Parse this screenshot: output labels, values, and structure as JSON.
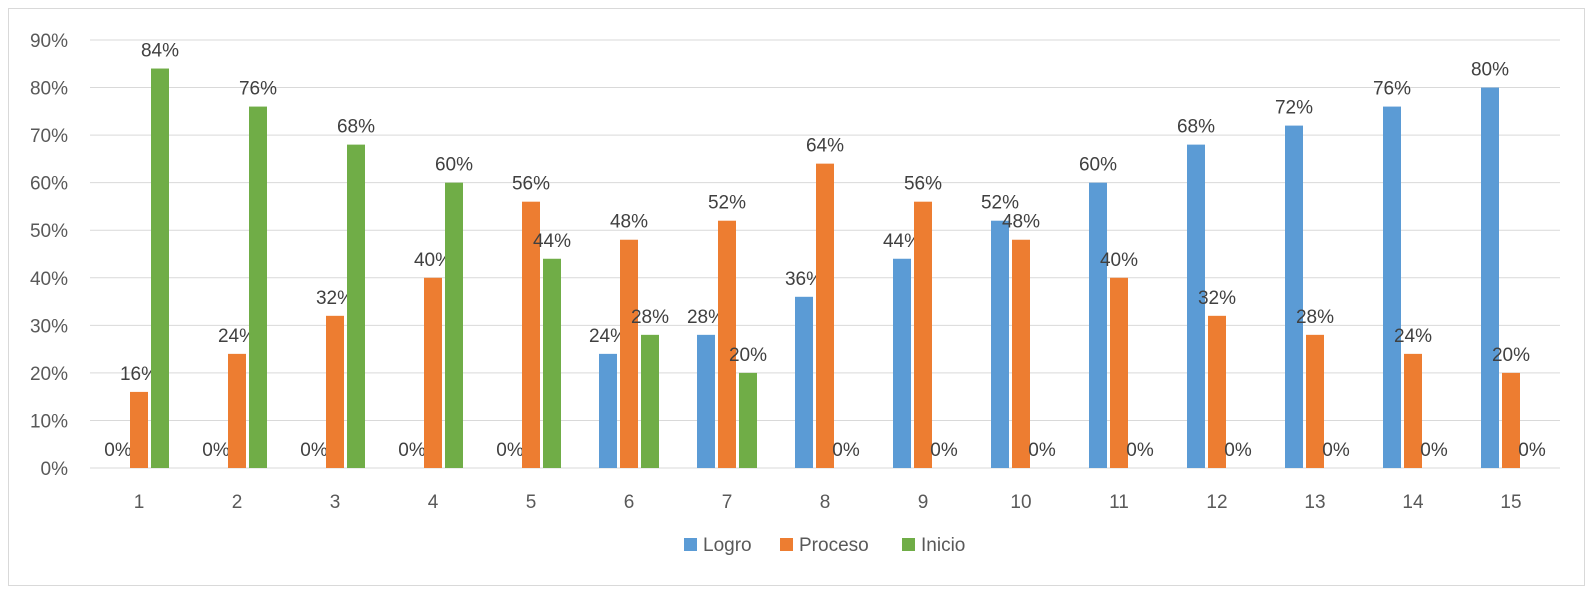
{
  "chart_data": {
    "type": "bar",
    "categories": [
      "1",
      "2",
      "3",
      "4",
      "5",
      "6",
      "7",
      "8",
      "9",
      "10",
      "11",
      "12",
      "13",
      "14",
      "15"
    ],
    "series": [
      {
        "name": "Logro",
        "color": "#5b9bd5",
        "values": [
          0,
          0,
          0,
          0,
          0,
          24,
          28,
          36,
          44,
          52,
          60,
          68,
          72,
          76,
          80
        ]
      },
      {
        "name": "Proceso",
        "color": "#ed7d31",
        "values": [
          16,
          24,
          32,
          40,
          56,
          48,
          52,
          64,
          56,
          48,
          40,
          32,
          28,
          24,
          20
        ]
      },
      {
        "name": "Inicio",
        "color": "#70ad47",
        "values": [
          84,
          76,
          68,
          60,
          44,
          28,
          20,
          0,
          0,
          0,
          0,
          0,
          0,
          0,
          0
        ]
      }
    ],
    "yticks": [
      "0%",
      "10%",
      "20%",
      "30%",
      "40%",
      "50%",
      "60%",
      "70%",
      "80%",
      "90%"
    ],
    "ylim": [
      0,
      90
    ],
    "value_suffix": "%",
    "grid": true,
    "legend_position": "bottom"
  }
}
